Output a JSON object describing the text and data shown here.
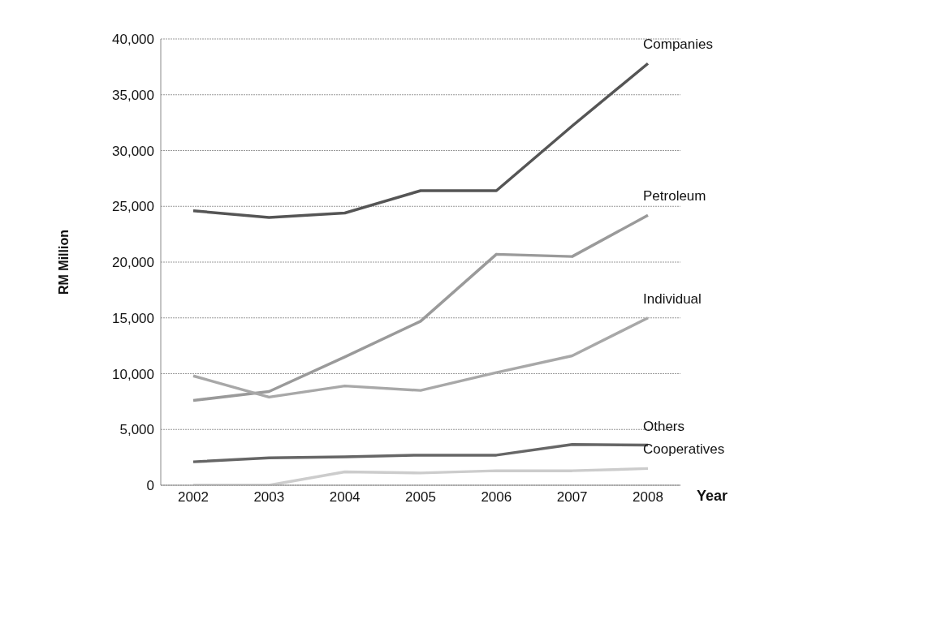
{
  "chart_data": {
    "type": "line",
    "xlabel": "Year",
    "ylabel": "RM Million",
    "categories": [
      "2002",
      "2003",
      "2004",
      "2005",
      "2006",
      "2007",
      "2008"
    ],
    "series": [
      {
        "name": "Companies",
        "color": "#555555",
        "values": [
          24600,
          24000,
          24400,
          26400,
          26400,
          32200,
          37800
        ]
      },
      {
        "name": "Petroleum",
        "color": "#9a9a9a",
        "values": [
          7600,
          8400,
          11500,
          14700,
          20700,
          20500,
          24200
        ]
      },
      {
        "name": "Individual",
        "color": "#a8a8a8",
        "values": [
          9800,
          7900,
          8900,
          8500,
          10100,
          11600,
          15000
        ]
      },
      {
        "name": "Others",
        "color": "#666666",
        "values": [
          2100,
          2450,
          2550,
          2700,
          2700,
          3650,
          3600
        ]
      },
      {
        "name": "Cooperatives",
        "color": "#cccccc",
        "values": [
          0,
          0,
          1200,
          1100,
          1300,
          1300,
          1500
        ]
      }
    ],
    "ylim": [
      0,
      40000
    ],
    "yticks": [
      0,
      {
        "value": 5000,
        "label": "5,000"
      },
      {
        "value": 10000,
        "label": "10,000"
      },
      {
        "value": 15000,
        "label": "15,000"
      },
      {
        "value": 20000,
        "label": "20,000"
      },
      {
        "value": 25000,
        "label": "25,000"
      },
      {
        "value": 30000,
        "label": "30,000"
      },
      {
        "value": 35000,
        "label": "35,000"
      },
      {
        "value": 40000,
        "label": "40,000"
      }
    ],
    "grid": "y",
    "legend": false,
    "marker": "none",
    "line_style": "solid"
  }
}
